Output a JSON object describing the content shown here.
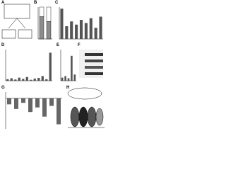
{
  "panels": [
    {
      "label": "A"
    },
    {
      "label": "B",
      "ylim": [
        0,
        100
      ],
      "series": [
        {
          "color": "#8c8c8c",
          "values": [
            70,
            55
          ]
        },
        {
          "color": "#ffffff",
          "values": [
            30,
            45
          ]
        }
      ]
    },
    {
      "label": "C",
      "ylim": [
        0,
        100
      ],
      "color": "#555555",
      "values": [
        95,
        40,
        55,
        45,
        60,
        50,
        65,
        35,
        70
      ]
    },
    {
      "label": "D",
      "ylim": [
        0,
        100
      ],
      "color": "#555555",
      "values": [
        5,
        8,
        4,
        10,
        6,
        12,
        3,
        7,
        9,
        15,
        5,
        90
      ]
    },
    {
      "label": "E",
      "ylim": [
        0,
        100
      ],
      "color": "#555555",
      "values": [
        10,
        15,
        8,
        80,
        20
      ]
    },
    {
      "label": "F"
    },
    {
      "label": "G",
      "ylim": [
        -100,
        20
      ],
      "color": "#666666",
      "values": [
        -20,
        -35,
        -15,
        -45,
        -30,
        -60,
        -25,
        -85
      ]
    },
    {
      "label": "H"
    }
  ]
}
